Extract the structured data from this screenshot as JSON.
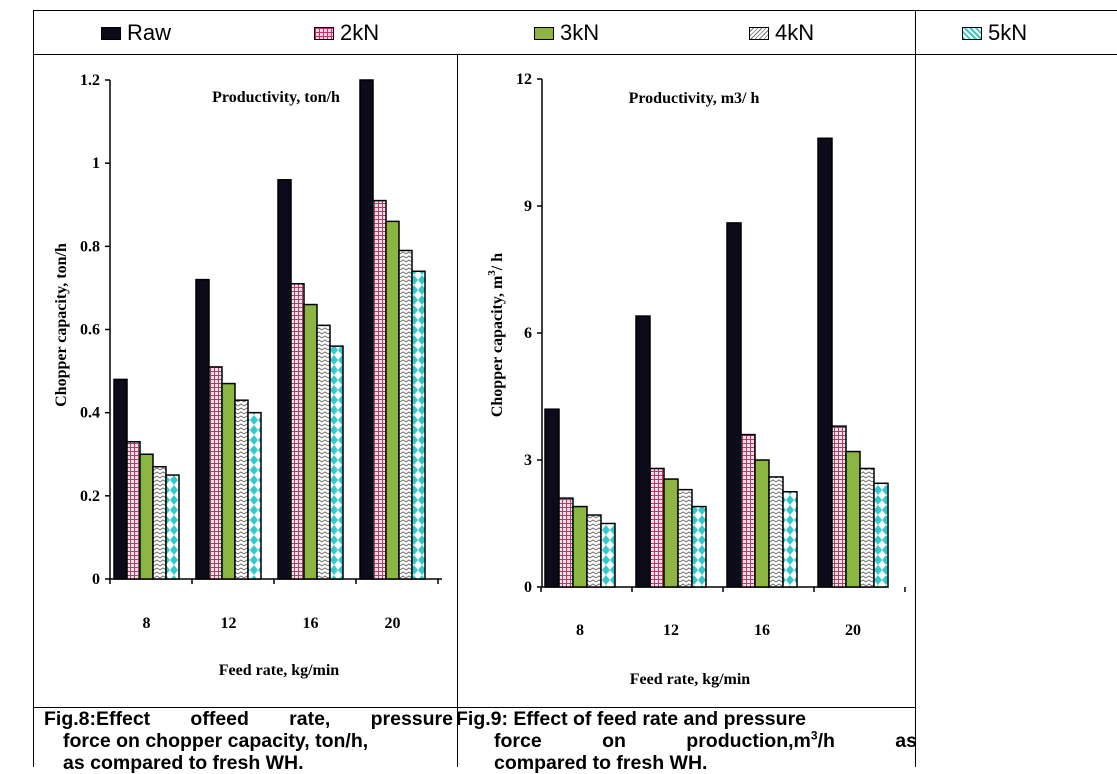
{
  "legend": [
    {
      "name": "Raw",
      "color": "#0b0b1a",
      "pattern": "raw"
    },
    {
      "name": "2kN",
      "color": "#c0336b",
      "pattern": "grid"
    },
    {
      "name": "3kN",
      "color": "#8cb542",
      "pattern": "solid"
    },
    {
      "name": "4kN",
      "color": "#8c8c8c",
      "pattern": "zigzag"
    },
    {
      "name": "5kN",
      "color": "#33c9cc",
      "pattern": "diamonds"
    }
  ],
  "captions": {
    "fig8": {
      "line1_parts": [
        "Fig.8:Effect",
        "offeed",
        "rate,",
        "pressure"
      ],
      "line2": "force on chopper capacity, ton/h,",
      "line3": "as compared to fresh WH."
    },
    "fig9": {
      "line1": "Fig.9: Effect of feed rate and pressure",
      "line2_parts": [
        "force",
        "on",
        "production,m",
        "3",
        "/h",
        "as"
      ],
      "line3": "compared to fresh WH."
    }
  },
  "chart_data": [
    {
      "type": "bar",
      "title": "Productivity, ton/h",
      "xlabel": "Feed rate, kg/min",
      "ylabel": "Chopper capacity, ton/h",
      "ylim": [
        0,
        1.2
      ],
      "y_ticks": [
        "0",
        "0.2",
        "0.4",
        "0.6",
        "0.8",
        "1",
        "1.2"
      ],
      "categories": [
        "8",
        "12",
        "16",
        "20"
      ],
      "series": [
        {
          "name": "Raw",
          "values": [
            0.48,
            0.72,
            0.96,
            1.2
          ]
        },
        {
          "name": "2kN",
          "values": [
            0.33,
            0.51,
            0.71,
            0.91
          ]
        },
        {
          "name": "3kN",
          "values": [
            0.3,
            0.47,
            0.66,
            0.86
          ]
        },
        {
          "name": "4kN",
          "values": [
            0.27,
            0.43,
            0.61,
            0.79
          ]
        },
        {
          "name": "5kN",
          "values": [
            0.25,
            0.4,
            0.56,
            0.74
          ]
        }
      ]
    },
    {
      "type": "bar",
      "title": "Productivity, m3/ h",
      "xlabel": "Feed rate, kg/min",
      "ylabel": "Chopper capacity, m",
      "ylabel_sup": "3",
      "ylabel_tail": "/ h",
      "ylim": [
        0,
        12
      ],
      "y_ticks": [
        "0",
        "3",
        "6",
        "9",
        "12"
      ],
      "categories": [
        "8",
        "12",
        "16",
        "20"
      ],
      "series": [
        {
          "name": "Raw",
          "values": [
            4.2,
            6.4,
            8.6,
            10.6
          ]
        },
        {
          "name": "2kN",
          "values": [
            2.1,
            2.8,
            3.6,
            3.8
          ]
        },
        {
          "name": "3kN",
          "values": [
            1.9,
            2.55,
            3.0,
            3.2
          ]
        },
        {
          "name": "4kN",
          "values": [
            1.7,
            2.3,
            2.6,
            2.8
          ]
        },
        {
          "name": "5kN",
          "values": [
            1.5,
            1.9,
            2.25,
            2.45
          ]
        }
      ]
    }
  ]
}
